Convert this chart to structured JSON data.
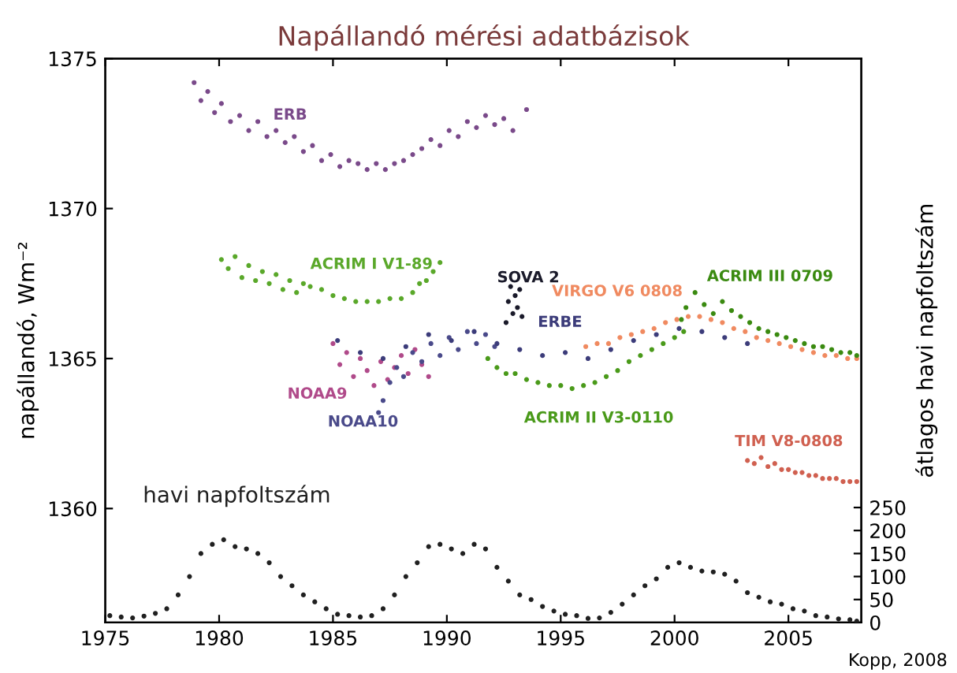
{
  "chart_data": {
    "type": "scatter",
    "title": "Napállandó mérési adatbázisok",
    "ylabel": "napállandó, Wm⁻²",
    "y2label": "átlagos havi napfoltszám",
    "xlim": [
      1975,
      2008.2
    ],
    "xticks": [
      1975,
      1980,
      1985,
      1990,
      1995,
      2000,
      2005
    ],
    "ylim": [
      1356.2,
      1375
    ],
    "yticks": [
      1360,
      1365,
      1370,
      1375
    ],
    "y2lim": [
      0,
      1226
    ],
    "y2ticks": [
      0,
      50,
      100,
      150,
      200,
      250
    ],
    "grid": false,
    "legend": false,
    "marker": "circle",
    "series": [
      {
        "name": "ERB",
        "color": "#7a4a8a",
        "x": [
          1978.9,
          1979.2,
          1979.5,
          1979.8,
          1980.1,
          1980.5,
          1980.9,
          1981.3,
          1981.7,
          1982.1,
          1982.5,
          1982.9,
          1983.3,
          1983.7,
          1984.1,
          1984.5,
          1984.9,
          1985.3,
          1985.7,
          1986.1,
          1986.5,
          1986.9,
          1987.3,
          1987.7,
          1988.1,
          1988.5,
          1988.9,
          1989.3,
          1989.7,
          1990.1,
          1990.5,
          1990.9,
          1991.3,
          1991.7,
          1992.1,
          1992.5,
          1992.9,
          1993.5
        ],
        "values": [
          1374.2,
          1373.6,
          1373.9,
          1373.2,
          1373.5,
          1372.9,
          1373.1,
          1372.6,
          1372.9,
          1372.4,
          1372.6,
          1372.2,
          1372.4,
          1371.9,
          1372.1,
          1371.6,
          1371.8,
          1371.4,
          1371.6,
          1371.5,
          1371.3,
          1371.5,
          1371.3,
          1371.5,
          1371.6,
          1371.8,
          1372.0,
          1372.3,
          1372.1,
          1372.6,
          1372.4,
          1372.9,
          1372.7,
          1373.1,
          1372.8,
          1373.0,
          1372.6,
          1373.3
        ]
      },
      {
        "name": "ACRIM I V1-89",
        "color": "#5aa82a",
        "x": [
          1980.1,
          1980.4,
          1980.7,
          1981.0,
          1981.3,
          1981.6,
          1981.9,
          1982.2,
          1982.5,
          1982.8,
          1983.1,
          1983.4,
          1983.7,
          1984.0,
          1984.5,
          1985.0,
          1985.5,
          1986.0,
          1986.5,
          1987.0,
          1987.5,
          1988.0,
          1988.5,
          1988.8,
          1989.1,
          1989.4,
          1989.7
        ],
        "values": [
          1368.3,
          1368.0,
          1368.4,
          1367.7,
          1368.1,
          1367.6,
          1367.9,
          1367.5,
          1367.8,
          1367.3,
          1367.6,
          1367.2,
          1367.5,
          1367.4,
          1367.3,
          1367.1,
          1367.0,
          1366.9,
          1366.9,
          1366.9,
          1367.0,
          1367.0,
          1367.2,
          1367.5,
          1367.6,
          1367.9,
          1368.2
        ]
      },
      {
        "name": "NOAA9",
        "color": "#b04a8a",
        "x": [
          1985.0,
          1985.3,
          1985.6,
          1985.9,
          1986.2,
          1986.5,
          1986.8,
          1987.1,
          1987.4,
          1987.7,
          1988.0,
          1988.3,
          1988.6,
          1988.9,
          1989.2
        ],
        "values": [
          1365.5,
          1364.8,
          1365.2,
          1364.4,
          1365.0,
          1364.6,
          1364.1,
          1364.9,
          1364.3,
          1364.7,
          1365.1,
          1364.5,
          1365.3,
          1364.8,
          1364.4
        ]
      },
      {
        "name": "NOAA10",
        "color": "#4a4a8a",
        "x": [
          1987.0,
          1987.2,
          1987.5,
          1987.8,
          1988.1,
          1988.5,
          1988.9,
          1989.3,
          1989.7,
          1990.1,
          1990.5,
          1990.9,
          1991.3,
          1991.7,
          1992.1
        ],
        "values": [
          1363.2,
          1363.6,
          1364.2,
          1364.7,
          1364.4,
          1365.2,
          1364.9,
          1365.5,
          1365.1,
          1365.7,
          1365.3,
          1365.9,
          1365.5,
          1365.8,
          1365.4
        ]
      },
      {
        "name": "SOVA 2",
        "color": "#1a1a2a",
        "x": [
          1992.6,
          1992.7,
          1992.8,
          1992.9,
          1993.0,
          1993.1,
          1993.2,
          1993.3
        ],
        "values": [
          1366.2,
          1366.9,
          1367.4,
          1366.5,
          1367.1,
          1366.7,
          1367.3,
          1366.4
        ]
      },
      {
        "name": "ERBE",
        "color": "#3c3c7a",
        "x": [
          1985.2,
          1986.2,
          1987.2,
          1988.2,
          1989.2,
          1990.2,
          1991.2,
          1992.2,
          1993.2,
          1994.2,
          1995.2,
          1996.2,
          1997.2,
          1998.2,
          1999.2,
          2000.2,
          2001.2,
          2002.2,
          2003.2
        ],
        "values": [
          1365.6,
          1365.2,
          1365.0,
          1365.4,
          1365.8,
          1365.6,
          1365.9,
          1365.5,
          1365.3,
          1365.1,
          1365.2,
          1365.0,
          1365.3,
          1365.6,
          1365.8,
          1366.0,
          1365.9,
          1365.7,
          1365.5
        ]
      },
      {
        "name": "VIRGO V6 0808",
        "color": "#f08a60",
        "x": [
          1996.1,
          1996.6,
          1997.1,
          1997.6,
          1998.1,
          1998.6,
          1999.1,
          1999.6,
          2000.1,
          2000.6,
          2001.1,
          2001.6,
          2002.1,
          2002.6,
          2003.1,
          2003.6,
          2004.1,
          2004.6,
          2005.1,
          2005.6,
          2006.1,
          2006.6,
          2007.1,
          2007.6,
          2008.0
        ],
        "values": [
          1365.4,
          1365.5,
          1365.5,
          1365.7,
          1365.8,
          1365.9,
          1366.0,
          1366.2,
          1366.3,
          1366.4,
          1366.4,
          1366.3,
          1366.2,
          1366.0,
          1365.9,
          1365.7,
          1365.6,
          1365.5,
          1365.4,
          1365.3,
          1365.2,
          1365.1,
          1365.1,
          1365.0,
          1365.0
        ]
      },
      {
        "name": "ACRIM II V3-0110",
        "color": "#4a9a1a",
        "x": [
          1991.8,
          1992.2,
          1992.6,
          1993.0,
          1993.5,
          1994.0,
          1994.5,
          1995.0,
          1995.5,
          1996.0,
          1996.5,
          1997.0,
          1997.5,
          1998.0,
          1998.5,
          1999.0,
          1999.5,
          2000.0,
          2000.4
        ],
        "values": [
          1365.0,
          1364.7,
          1364.5,
          1364.5,
          1364.3,
          1364.2,
          1364.1,
          1364.1,
          1364.0,
          1364.1,
          1364.2,
          1364.4,
          1364.6,
          1364.9,
          1365.1,
          1365.3,
          1365.5,
          1365.7,
          1365.9
        ]
      },
      {
        "name": "ACRIM III 0709",
        "color": "#3a8a10",
        "x": [
          2000.3,
          2000.5,
          2000.9,
          2001.3,
          2001.7,
          2002.1,
          2002.5,
          2002.9,
          2003.3,
          2003.7,
          2004.1,
          2004.5,
          2004.9,
          2005.3,
          2005.7,
          2006.1,
          2006.5,
          2006.9,
          2007.3,
          2007.7,
          2008.0
        ],
        "values": [
          1366.3,
          1366.7,
          1367.2,
          1366.8,
          1366.5,
          1366.9,
          1366.6,
          1366.4,
          1366.2,
          1366.0,
          1365.9,
          1365.8,
          1365.7,
          1365.6,
          1365.5,
          1365.4,
          1365.4,
          1365.3,
          1365.2,
          1365.2,
          1365.1
        ]
      },
      {
        "name": "TIM V8-0808",
        "color": "#d06050",
        "x": [
          2003.2,
          2003.5,
          2003.8,
          2004.1,
          2004.4,
          2004.7,
          2005.0,
          2005.3,
          2005.6,
          2005.9,
          2006.2,
          2006.5,
          2006.8,
          2007.1,
          2007.4,
          2007.7,
          2008.0
        ],
        "values": [
          1361.6,
          1361.5,
          1361.7,
          1361.4,
          1361.5,
          1361.3,
          1361.3,
          1361.2,
          1361.2,
          1361.1,
          1361.1,
          1361.0,
          1361.0,
          1361.0,
          1360.9,
          1360.9,
          1360.9
        ]
      },
      {
        "name": "havi napfoltszám",
        "color": "#202020",
        "axis": "y2",
        "x": [
          1975.2,
          1975.7,
          1976.2,
          1976.7,
          1977.2,
          1977.7,
          1978.2,
          1978.7,
          1979.2,
          1979.7,
          1980.2,
          1980.7,
          1981.2,
          1981.7,
          1982.2,
          1982.7,
          1983.2,
          1983.7,
          1984.2,
          1984.7,
          1985.2,
          1985.7,
          1986.2,
          1986.7,
          1987.2,
          1987.7,
          1988.2,
          1988.7,
          1989.2,
          1989.7,
          1990.2,
          1990.7,
          1991.2,
          1991.7,
          1992.2,
          1992.7,
          1993.2,
          1993.7,
          1994.2,
          1994.7,
          1995.2,
          1995.7,
          1996.2,
          1996.7,
          1997.2,
          1997.7,
          1998.2,
          1998.7,
          1999.2,
          1999.7,
          2000.2,
          2000.7,
          2001.2,
          2001.7,
          2002.2,
          2002.7,
          2003.2,
          2003.7,
          2004.2,
          2004.7,
          2005.2,
          2005.7,
          2006.2,
          2006.7,
          2007.2,
          2007.7,
          2008.0
        ],
        "values": [
          15,
          12,
          10,
          14,
          20,
          30,
          60,
          100,
          150,
          170,
          180,
          165,
          160,
          150,
          130,
          100,
          80,
          60,
          45,
          30,
          18,
          15,
          12,
          15,
          30,
          60,
          100,
          130,
          165,
          170,
          160,
          150,
          170,
          160,
          120,
          90,
          60,
          50,
          35,
          25,
          18,
          15,
          9,
          10,
          22,
          40,
          60,
          80,
          95,
          120,
          130,
          120,
          112,
          110,
          105,
          90,
          65,
          55,
          45,
          40,
          30,
          25,
          15,
          12,
          8,
          6,
          3
        ]
      }
    ],
    "annotations": [
      "Kopp, 2008"
    ]
  }
}
